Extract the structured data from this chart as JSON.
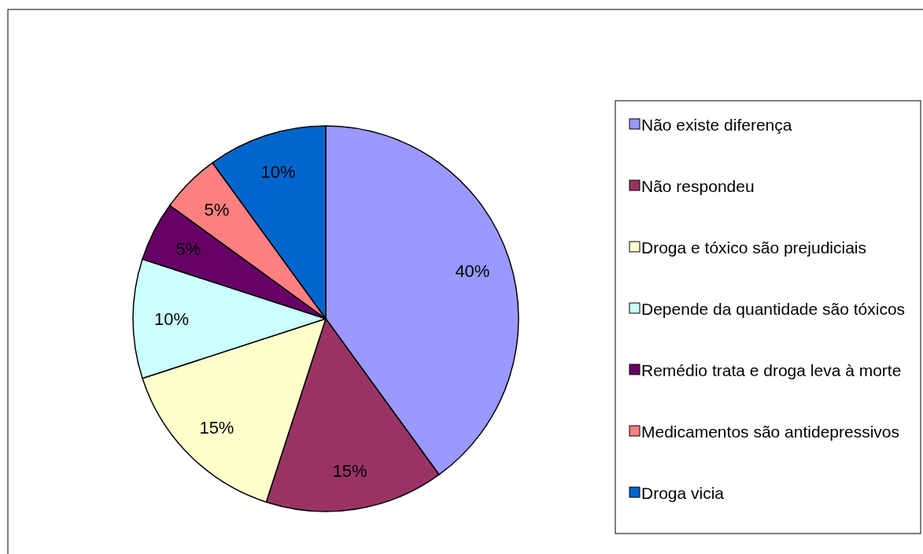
{
  "chart_data": {
    "type": "pie",
    "categories": [
      "Não existe diferença",
      "Não respondeu",
      "Droga e tóxico são prejudiciais",
      "Depende da quantidade são tóxicos",
      "Remédio trata e droga leva à morte",
      "Medicamentos são antidepressivos",
      "Droga vicia"
    ],
    "values": [
      40,
      15,
      15,
      10,
      5,
      5,
      10
    ],
    "colors": [
      "#9999ff",
      "#993366",
      "#ffffcc",
      "#ccffff",
      "#660066",
      "#ff8080",
      "#0066cc"
    ],
    "value_labels": [
      "40%",
      "15%",
      "15%",
      "10%",
      "5%",
      "5%",
      "10%"
    ],
    "legend": "right"
  }
}
